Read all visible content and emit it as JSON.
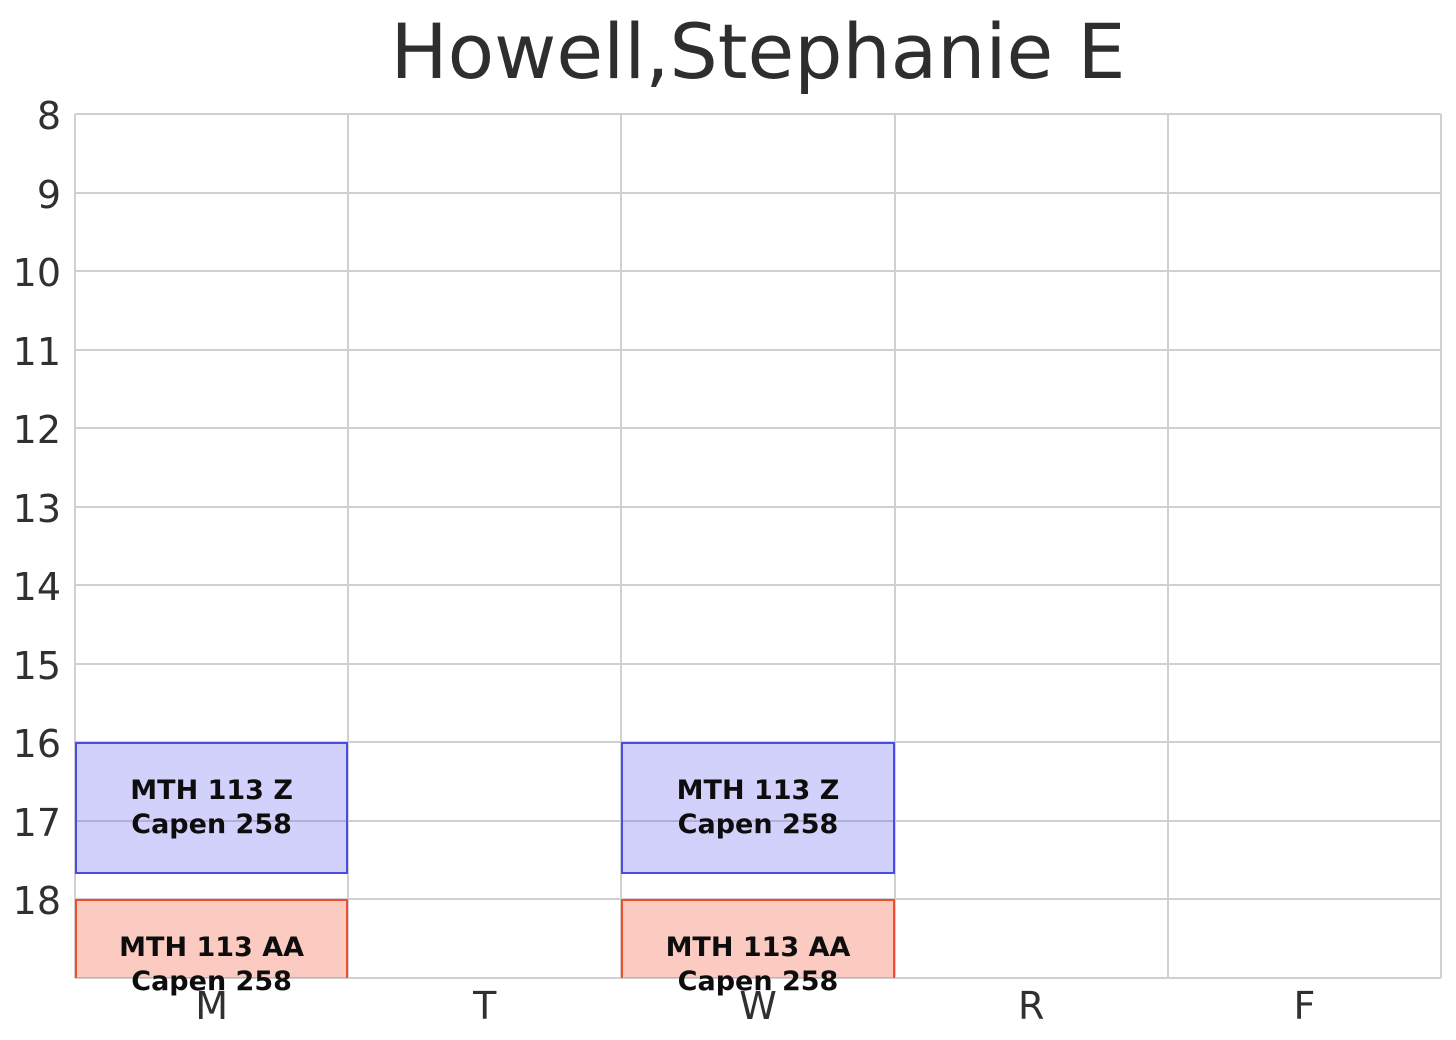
{
  "chart_data": {
    "type": "bar",
    "subtype": "weekly-schedule-timetable",
    "title": "Howell,Stephanie E",
    "x_categories": [
      "M",
      "T",
      "W",
      "R",
      "F"
    ],
    "y_axis": {
      "ticks": [
        "8",
        "9",
        "10",
        "11",
        "12",
        "13",
        "14",
        "15",
        "16",
        "17",
        "18"
      ],
      "tick_values": [
        8,
        9,
        10,
        11,
        12,
        13,
        14,
        15,
        16,
        17,
        18
      ],
      "range": [
        8,
        19
      ],
      "unit": "hour-of-day",
      "direction": "down",
      "grid": "on"
    },
    "legend": "none",
    "events": [
      {
        "day": "M",
        "day_index": 0,
        "start_hour": 16.0,
        "end_hour": 17.67,
        "course": "MTH 113 Z",
        "room": "Capen 258",
        "color_key": "blue"
      },
      {
        "day": "M",
        "day_index": 0,
        "start_hour": 18.0,
        "end_hour": 19.67,
        "course": "MTH 113 AA",
        "room": "Capen 258",
        "color_key": "red"
      },
      {
        "day": "W",
        "day_index": 2,
        "start_hour": 16.0,
        "end_hour": 17.67,
        "course": "MTH 113 Z",
        "room": "Capen 258",
        "color_key": "blue"
      },
      {
        "day": "W",
        "day_index": 2,
        "start_hour": 18.0,
        "end_hour": 19.67,
        "course": "MTH 113 AA",
        "room": "Capen 258",
        "color_key": "red"
      }
    ],
    "colors": {
      "blue_fill": "rgba(90,90,240,0.28)",
      "blue_border": "#4b4be8",
      "red_fill": "rgba(240,72,42,0.29)",
      "red_border": "#f04e2e",
      "grid": "#d0d0d0",
      "axis_label": "#303030",
      "event_text": "#0d0d0d",
      "background": "#ffffff"
    }
  }
}
